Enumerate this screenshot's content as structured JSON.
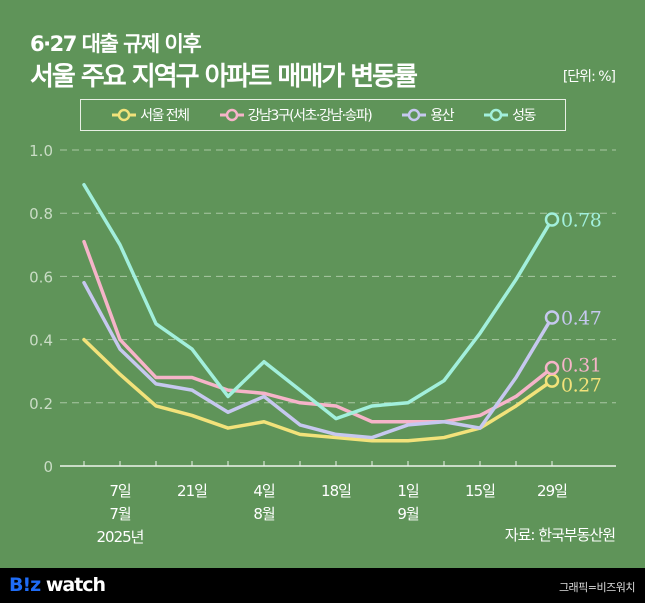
{
  "header": {
    "subtitle": "6·27 대출 규제 이후",
    "title": "서울 주요 지역구 아파트 매매가 변동률",
    "unit": "[단위: %]"
  },
  "source": "자료: 한국부동산원",
  "footer": {
    "logo_text": "B!z watch",
    "credit": "그래픽=비즈워치"
  },
  "chart_data": {
    "type": "line",
    "x": [
      "2025-06-30",
      "2025-07-07",
      "2025-07-14",
      "2025-07-21",
      "2025-07-28",
      "2025-08-04",
      "2025-08-11",
      "2025-08-18",
      "2025-08-25",
      "2025-09-01",
      "2025-09-08",
      "2025-09-15",
      "2025-09-22",
      "2025-09-29"
    ],
    "x_tick_labels": [
      {
        "x": "2025-07-07",
        "lines": [
          "7일",
          "7월",
          "2025년"
        ]
      },
      {
        "x": "2025-07-21",
        "lines": [
          "21일"
        ]
      },
      {
        "x": "2025-08-04",
        "lines": [
          "4일",
          "8월"
        ]
      },
      {
        "x": "2025-08-18",
        "lines": [
          "18일"
        ]
      },
      {
        "x": "2025-09-01",
        "lines": [
          "1일",
          "9월"
        ]
      },
      {
        "x": "2025-09-15",
        "lines": [
          "15일"
        ]
      },
      {
        "x": "2025-09-29",
        "lines": [
          "29일"
        ]
      }
    ],
    "ylim": [
      0,
      1.0
    ],
    "y_ticks": [
      "0",
      "0.2",
      "0.4",
      "0.6",
      "0.8",
      "1.0"
    ],
    "grid": true,
    "legend_position": "top",
    "series": [
      {
        "name": "서울 전체",
        "color": "#f2e27a",
        "end_label": "0.27",
        "values": [
          0.4,
          0.29,
          0.19,
          0.16,
          0.12,
          0.14,
          0.1,
          0.09,
          0.08,
          0.08,
          0.09,
          0.12,
          0.19,
          0.27
        ]
      },
      {
        "name": "강남3구(서초·강남·송파)",
        "color": "#f6b4c9",
        "end_label": "0.31",
        "values": [
          0.71,
          0.4,
          0.28,
          0.28,
          0.24,
          0.23,
          0.2,
          0.19,
          0.14,
          0.14,
          0.14,
          0.16,
          0.22,
          0.31
        ]
      },
      {
        "name": "용산",
        "color": "#c6c8ef",
        "end_label": "0.47",
        "values": [
          0.58,
          0.37,
          0.26,
          0.24,
          0.17,
          0.22,
          0.13,
          0.1,
          0.09,
          0.13,
          0.14,
          0.12,
          0.28,
          0.47
        ]
      },
      {
        "name": "성동",
        "color": "#a2efdc",
        "end_label": "0.78",
        "values": [
          0.89,
          0.7,
          0.45,
          0.37,
          0.22,
          0.33,
          0.24,
          0.15,
          0.19,
          0.2,
          0.27,
          0.42,
          0.59,
          0.78
        ]
      }
    ]
  }
}
